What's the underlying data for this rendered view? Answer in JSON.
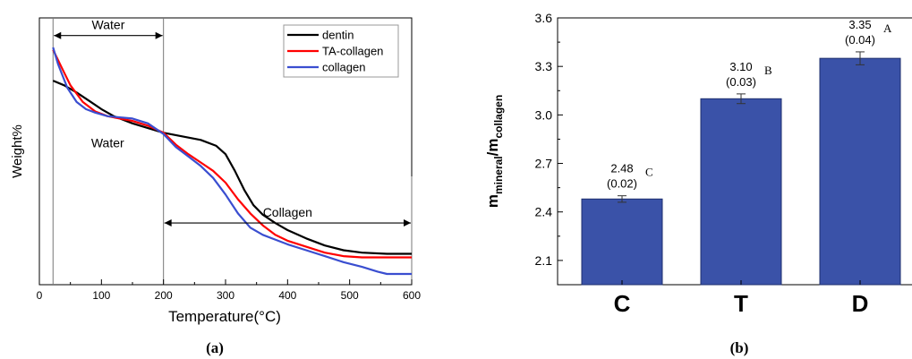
{
  "chart_data": [
    {
      "type": "line",
      "panel_label": "(a)",
      "xlabel": "Temperature(°C)",
      "ylabel": "Weight%",
      "xlim": [
        0,
        600
      ],
      "ylim": [
        0,
        100
      ],
      "x_ticks": [
        0,
        100,
        200,
        300,
        400,
        500,
        600
      ],
      "grid": false,
      "legend_position": "top-right",
      "series": [
        {
          "name": "dentin",
          "color": "#000000",
          "points": [
            [
              22,
              83
            ],
            [
              40,
              81
            ],
            [
              60,
              78
            ],
            [
              80,
              74.5
            ],
            [
              100,
              71
            ],
            [
              120,
              68
            ],
            [
              150,
              65
            ],
            [
              175,
              63
            ],
            [
              200,
              61
            ],
            [
              230,
              59.5
            ],
            [
              260,
              58
            ],
            [
              285,
              55.5
            ],
            [
              300,
              52
            ],
            [
              315,
              45
            ],
            [
              330,
              37
            ],
            [
              345,
              30.5
            ],
            [
              360,
              26.5
            ],
            [
              380,
              23
            ],
            [
              400,
              20
            ],
            [
              430,
              16.5
            ],
            [
              460,
              13.5
            ],
            [
              490,
              11.5
            ],
            [
              520,
              10.5
            ],
            [
              560,
              10
            ],
            [
              600,
              10
            ]
          ]
        },
        {
          "name": "TA-collagen",
          "color": "#ff0000",
          "points": [
            [
              22,
              96
            ],
            [
              35,
              89
            ],
            [
              50,
              81
            ],
            [
              70,
              74
            ],
            [
              90,
              70
            ],
            [
              110,
              68
            ],
            [
              150,
              66
            ],
            [
              175,
              64
            ],
            [
              200,
              61
            ],
            [
              220,
              56
            ],
            [
              240,
              52
            ],
            [
              260,
              48.5
            ],
            [
              280,
              45
            ],
            [
              300,
              40
            ],
            [
              320,
              33
            ],
            [
              340,
              27
            ],
            [
              360,
              22
            ],
            [
              380,
              18
            ],
            [
              400,
              15.5
            ],
            [
              430,
              13
            ],
            [
              460,
              10.5
            ],
            [
              490,
              9
            ],
            [
              520,
              8.5
            ],
            [
              560,
              8.5
            ],
            [
              600,
              8.5
            ]
          ]
        },
        {
          "name": "collagen",
          "color": "#3a4ed0",
          "points": [
            [
              22,
              97
            ],
            [
              30,
              90
            ],
            [
              45,
              80
            ],
            [
              60,
              74
            ],
            [
              75,
              71
            ],
            [
              90,
              69.5
            ],
            [
              110,
              68
            ],
            [
              150,
              67
            ],
            [
              175,
              65
            ],
            [
              200,
              60.5
            ],
            [
              220,
              55
            ],
            [
              240,
              51
            ],
            [
              260,
              47
            ],
            [
              280,
              42
            ],
            [
              300,
              35
            ],
            [
              320,
              27
            ],
            [
              340,
              21
            ],
            [
              360,
              18
            ],
            [
              380,
              16
            ],
            [
              400,
              14
            ],
            [
              430,
              11.5
            ],
            [
              460,
              9
            ],
            [
              490,
              6.5
            ],
            [
              520,
              4.5
            ],
            [
              545,
              2.5
            ],
            [
              560,
              1.5
            ],
            [
              600,
              1.5
            ]
          ]
        }
      ],
      "annotations": [
        {
          "text": "Water",
          "type": "range-arrow",
          "x_from": 22,
          "x_to": 200,
          "y": 102
        },
        {
          "text": "Water",
          "type": "label",
          "x": 110,
          "y": 55
        },
        {
          "text": "Collagen",
          "type": "range-arrow",
          "x_from": 200,
          "x_to": 600,
          "y": 23
        }
      ],
      "vertical_lines": [
        22,
        200,
        600
      ]
    },
    {
      "type": "bar",
      "panel_label": "(b)",
      "ylabel_main": "m",
      "ylabel_sub1": "mineral",
      "ylabel_slash": "/m",
      "ylabel_sub2": "collagen",
      "ylim": [
        1.95,
        3.6
      ],
      "y_ticks": [
        "2.1",
        "2.4",
        "2.7",
        "3.0",
        "3.3",
        "3.6"
      ],
      "categories": [
        "C",
        "T",
        "D"
      ],
      "values": [
        2.48,
        3.1,
        3.35
      ],
      "errors": [
        0.02,
        0.03,
        0.04
      ],
      "value_labels": [
        "2.48",
        "3.10",
        "3.35"
      ],
      "error_labels": [
        "(0.02)",
        "(0.03)",
        "(0.04)"
      ],
      "group_letters": [
        "C",
        "B",
        "A"
      ],
      "bar_color": "#3a52a8"
    }
  ]
}
